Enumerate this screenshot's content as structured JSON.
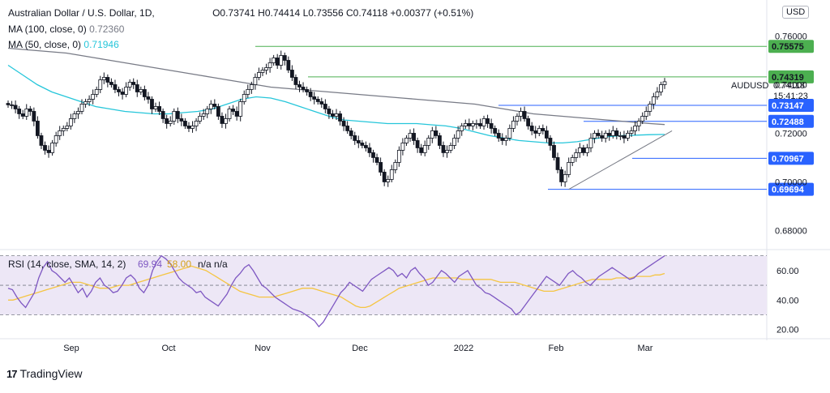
{
  "header": {
    "symbol_title": "Australian Dollar / U.S. Dollar, 1D,",
    "open_label": "O",
    "open": "0.73741",
    "high_label": "H",
    "high": "0.74414",
    "low_label": "L",
    "low": "0.73556",
    "close_label": "C",
    "close": "0.74118",
    "change": "+0.00377 (+0.51%)"
  },
  "indicators": {
    "ma100": {
      "label": "MA (100, close, 0)",
      "value": "0.72360",
      "color": "#787b86"
    },
    "ma50": {
      "label": "MA (50, close, 0)",
      "value": "0.71946",
      "color": "#26c6da"
    }
  },
  "currency_badge": "USD",
  "price_tag": {
    "symbol": "AUDUSD",
    "price": "0.74118",
    "countdown": "15:41:23"
  },
  "rsi_legend": {
    "label": "RSI (14, close, SMA, 14, 2)",
    "rsi": "69.94",
    "sma": "58.00",
    "extra": "n/a n/a"
  },
  "branding": {
    "logo": "17",
    "name": "TradingView"
  },
  "colors": {
    "up": "#131722",
    "down": "#131722",
    "level_green": "#4caf50",
    "level_blue": "#2962ff",
    "rsi_line": "#7e57c2",
    "rsi_ma": "#f5c542",
    "rsi_band": "#ede7f6"
  },
  "chart_data": [
    {
      "type": "candlestick",
      "title": "Australian Dollar / U.S. Dollar, 1D",
      "x_ticks": [
        "Sep",
        "Oct",
        "Nov",
        "Dec",
        "2022",
        "Feb",
        "Mar"
      ],
      "y_ticks": [
        "0.76000",
        "0.74000",
        "0.72000",
        "0.70000",
        "0.68000"
      ],
      "ylim": [
        0.6728,
        0.7735
      ],
      "closes": [
        0.7317,
        0.7315,
        0.73,
        0.728,
        0.727,
        0.73,
        0.729,
        0.725,
        0.719,
        0.715,
        0.713,
        0.712,
        0.716,
        0.719,
        0.721,
        0.722,
        0.723,
        0.726,
        0.728,
        0.729,
        0.732,
        0.733,
        0.734,
        0.736,
        0.738,
        0.742,
        0.743,
        0.741,
        0.74,
        0.738,
        0.737,
        0.736,
        0.739,
        0.741,
        0.74,
        0.737,
        0.738,
        0.735,
        0.734,
        0.73,
        0.731,
        0.729,
        0.726,
        0.724,
        0.725,
        0.729,
        0.726,
        0.725,
        0.723,
        0.722,
        0.723,
        0.725,
        0.727,
        0.728,
        0.73,
        0.732,
        0.731,
        0.727,
        0.724,
        0.726,
        0.73,
        0.729,
        0.727,
        0.733,
        0.736,
        0.738,
        0.74,
        0.743,
        0.745,
        0.746,
        0.747,
        0.749,
        0.751,
        0.748,
        0.752,
        0.75,
        0.746,
        0.743,
        0.74,
        0.739,
        0.738,
        0.737,
        0.735,
        0.734,
        0.733,
        0.732,
        0.73,
        0.728,
        0.727,
        0.728,
        0.725,
        0.723,
        0.721,
        0.719,
        0.717,
        0.716,
        0.715,
        0.714,
        0.712,
        0.71,
        0.708,
        0.704,
        0.7,
        0.701,
        0.705,
        0.708,
        0.713,
        0.716,
        0.718,
        0.72,
        0.717,
        0.714,
        0.712,
        0.715,
        0.718,
        0.721,
        0.719,
        0.715,
        0.712,
        0.713,
        0.715,
        0.718,
        0.721,
        0.723,
        0.724,
        0.723,
        0.724,
        0.724,
        0.723,
        0.726,
        0.724,
        0.722,
        0.72,
        0.718,
        0.717,
        0.718,
        0.722,
        0.725,
        0.727,
        0.729,
        0.726,
        0.723,
        0.721,
        0.72,
        0.722,
        0.721,
        0.718,
        0.715,
        0.71,
        0.705,
        0.7,
        0.703,
        0.708,
        0.71,
        0.712,
        0.714,
        0.712,
        0.714,
        0.718,
        0.72,
        0.719,
        0.718,
        0.72,
        0.719,
        0.721,
        0.719,
        0.719,
        0.718,
        0.72,
        0.721,
        0.723,
        0.725,
        0.727,
        0.729,
        0.732,
        0.735,
        0.737,
        0.74,
        0.7412
      ],
      "ma100": [
        0.755,
        0.7545,
        0.754,
        0.7535,
        0.753,
        0.752,
        0.751,
        0.75,
        0.749,
        0.748,
        0.747,
        0.746,
        0.745,
        0.744,
        0.743,
        0.742,
        0.741,
        0.74,
        0.739,
        0.7385,
        0.738,
        0.7375,
        0.737,
        0.7365,
        0.736,
        0.7355,
        0.735,
        0.7345,
        0.734,
        0.7335,
        0.733,
        0.7325,
        0.732,
        0.731,
        0.73,
        0.729,
        0.728,
        0.7275,
        0.727,
        0.7265,
        0.726,
        0.7255,
        0.725,
        0.7245,
        0.724,
        0.7236
      ],
      "ma50": [
        0.748,
        0.744,
        0.74,
        0.737,
        0.735,
        0.733,
        0.731,
        0.73,
        0.729,
        0.7285,
        0.728,
        0.728,
        0.7285,
        0.729,
        0.73,
        0.732,
        0.734,
        0.735,
        0.7345,
        0.733,
        0.731,
        0.729,
        0.727,
        0.7255,
        0.725,
        0.7245,
        0.724,
        0.724,
        0.724,
        0.7235,
        0.723,
        0.722,
        0.7205,
        0.719,
        0.718,
        0.717,
        0.7165,
        0.716,
        0.716,
        0.7165,
        0.7175,
        0.7185,
        0.719,
        0.7192,
        0.7194,
        0.7195
      ],
      "horizontal_levels": [
        {
          "label": "0.75575",
          "value": 0.75575,
          "color": "#4caf50"
        },
        {
          "label": "0.74319",
          "value": 0.74319,
          "color": "#4caf50"
        },
        {
          "label": "0.73147",
          "value": 0.73147,
          "color": "#2962ff"
        },
        {
          "label": "0.72488",
          "value": 0.72488,
          "color": "#2962ff"
        },
        {
          "label": "0.70967",
          "value": 0.70967,
          "color": "#2962ff"
        },
        {
          "label": "0.69694",
          "value": 0.69694,
          "color": "#2962ff"
        }
      ],
      "trendline": {
        "from": [
          152,
          0.6969
        ],
        "to": [
          180,
          0.721
        ]
      }
    },
    {
      "type": "line",
      "title": "RSI (14, close, SMA, 14, 2)",
      "y_ticks": [
        "60.00",
        "40.00",
        "20.00"
      ],
      "ylim": [
        16,
        72
      ],
      "bands": [
        30,
        50,
        70
      ],
      "rsi": [
        48,
        47,
        42,
        38,
        35,
        40,
        45,
        55,
        62,
        66,
        60,
        58,
        55,
        52,
        55,
        50,
        45,
        48,
        42,
        46,
        52,
        55,
        50,
        48,
        45,
        46,
        50,
        55,
        57,
        54,
        48,
        45,
        50,
        60,
        66,
        70,
        68,
        65,
        60,
        55,
        52,
        50,
        48,
        45,
        46,
        42,
        40,
        38,
        36,
        40,
        44,
        50,
        55,
        58,
        62,
        64,
        60,
        55,
        50,
        48,
        45,
        42,
        40,
        38,
        36,
        34,
        33,
        32,
        30,
        28,
        26,
        22,
        25,
        30,
        35,
        40,
        45,
        48,
        52,
        50,
        48,
        46,
        50,
        54,
        56,
        58,
        60,
        62,
        60,
        56,
        58,
        55,
        60,
        62,
        58,
        55,
        50,
        52,
        56,
        60,
        58,
        55,
        52,
        56,
        58,
        60,
        55,
        50,
        48,
        45,
        44,
        42,
        40,
        38,
        36,
        34,
        30,
        32,
        36,
        40,
        44,
        48,
        52,
        56,
        54,
        52,
        50,
        54,
        58,
        60,
        57,
        55,
        52,
        50,
        53,
        56,
        58,
        60,
        62,
        60,
        58,
        56,
        54,
        55,
        58,
        60,
        62,
        64,
        66,
        68,
        70
      ],
      "rsi_ma": [
        40,
        40,
        41,
        42,
        43,
        44,
        45,
        46,
        47,
        48,
        49,
        50,
        51,
        52,
        52,
        52,
        51,
        50,
        49,
        48,
        48,
        48,
        49,
        50,
        50,
        50,
        51,
        52,
        53,
        54,
        55,
        56,
        57,
        58,
        59,
        60,
        61,
        62,
        63,
        62,
        61,
        60,
        58,
        56,
        54,
        52,
        50,
        48,
        46,
        45,
        44,
        43,
        42,
        42,
        42,
        42,
        43,
        44,
        45,
        46,
        47,
        48,
        48,
        48,
        47,
        46,
        45,
        44,
        43,
        42,
        40,
        38,
        36,
        35,
        35,
        36,
        38,
        40,
        42,
        44,
        46,
        48,
        49,
        50,
        51,
        52,
        53,
        54,
        55,
        55,
        55,
        55,
        55,
        55,
        54,
        54,
        54,
        54,
        54,
        54,
        54,
        53,
        52,
        52,
        52,
        52,
        51,
        50,
        49,
        48,
        47,
        46,
        46,
        46,
        47,
        48,
        49,
        50,
        51,
        52,
        53,
        54,
        54,
        54,
        54,
        54,
        55,
        55,
        55,
        55,
        56,
        56,
        56,
        56,
        57,
        57,
        58
      ]
    }
  ]
}
